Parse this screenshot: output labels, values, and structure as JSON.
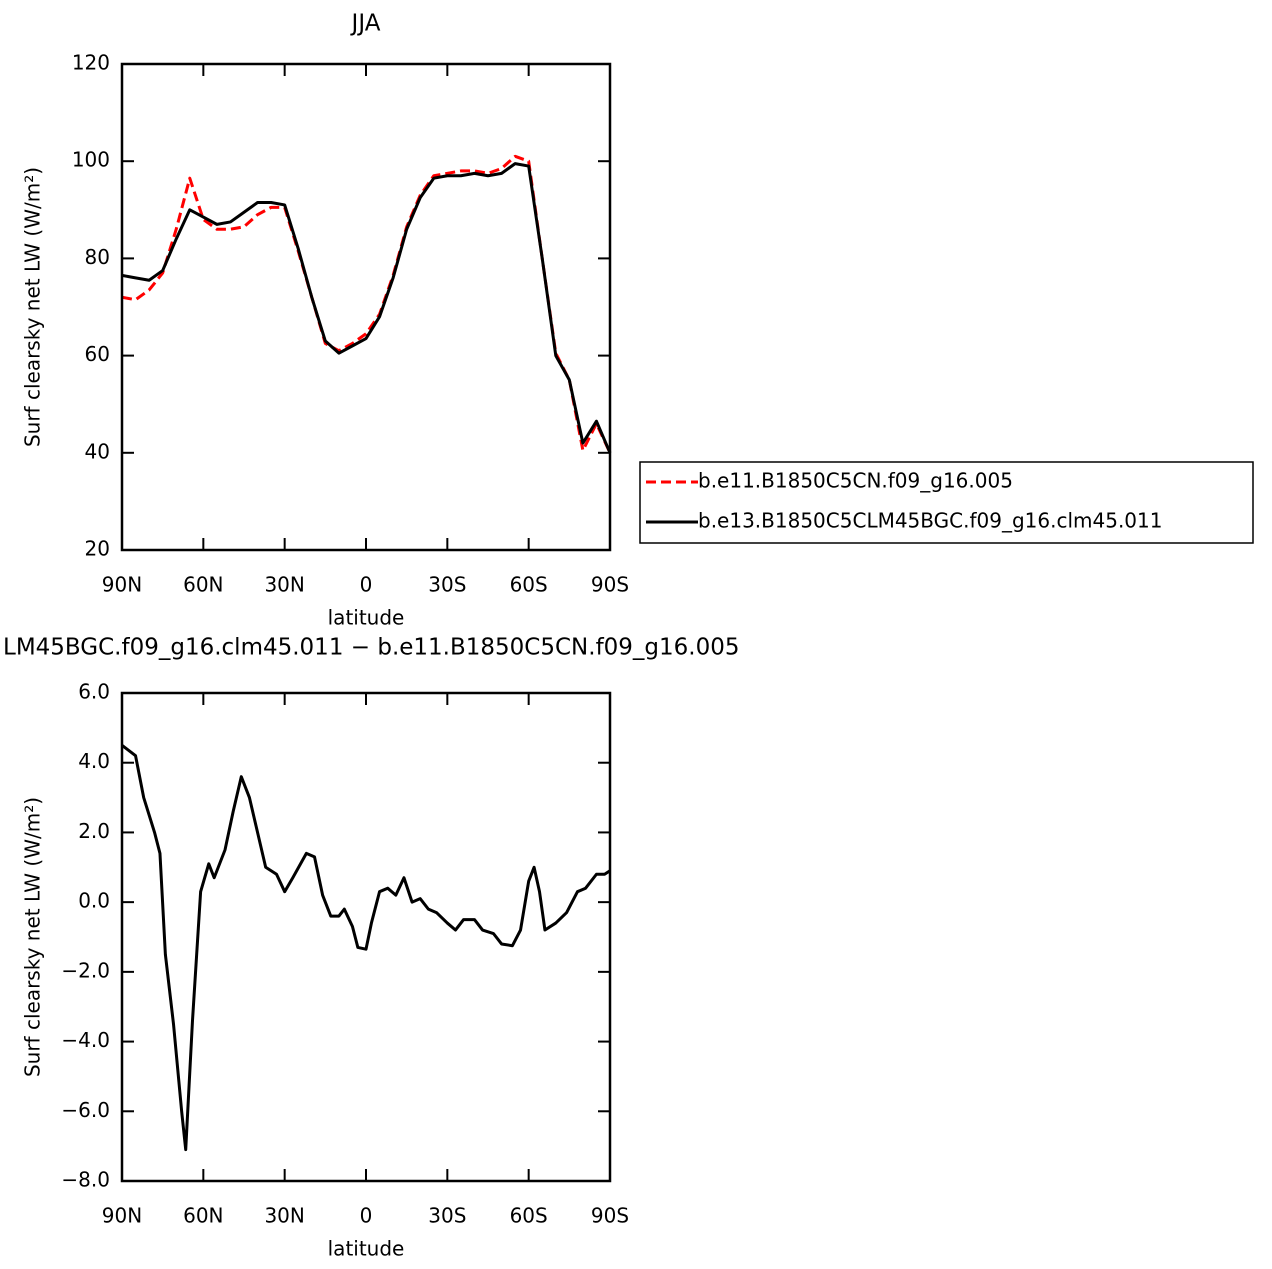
{
  "chart_data": [
    {
      "type": "line",
      "title": "JJA",
      "xlabel": "latitude",
      "ylabel": "Surf clearsky net LW (W/m²)",
      "xlim": [
        90,
        -90
      ],
      "ylim": [
        20,
        120
      ],
      "xticks": [
        {
          "value": 90,
          "label": "90N"
        },
        {
          "value": 60,
          "label": "60N"
        },
        {
          "value": 30,
          "label": "30N"
        },
        0,
        {
          "value": -30,
          "label": "30S"
        },
        {
          "value": -60,
          "label": "60S"
        },
        {
          "value": -90,
          "label": "90S"
        }
      ],
      "yticks": [
        20,
        40,
        60,
        80,
        100,
        120
      ],
      "legend": "right",
      "x": [
        90,
        85,
        80,
        75,
        70,
        65,
        60,
        55,
        50,
        45,
        40,
        35,
        30,
        25,
        20,
        15,
        10,
        5,
        0,
        -5,
        -10,
        -15,
        -20,
        -25,
        -30,
        -35,
        -40,
        -45,
        -50,
        -55,
        -60,
        -65,
        -70,
        -75,
        -80,
        -85,
        -90
      ],
      "series": [
        {
          "name": "b.e11.B1850C5CN.f09_g16.005",
          "color": "#ff0000",
          "dash": true,
          "values": [
            72,
            71.5,
            73.5,
            77,
            86,
            96.5,
            88,
            86,
            86,
            86.5,
            89,
            90.5,
            90.5,
            81.5,
            72,
            62.5,
            61,
            62.5,
            64.5,
            68.5,
            76.5,
            86.5,
            93,
            97,
            97.5,
            98,
            98,
            97.5,
            98.5,
            101,
            100,
            80,
            60.5,
            55,
            40.5,
            46,
            40
          ]
        },
        {
          "name": "b.e13.B1850C5CLM45BGC.f09_g16.clm45.011",
          "color": "#000000",
          "dash": false,
          "values": [
            76.5,
            76,
            75.5,
            77.5,
            84,
            90,
            88.5,
            87,
            87.5,
            89.5,
            91.5,
            91.5,
            91,
            82,
            72,
            63,
            60.5,
            62,
            63.5,
            68,
            76,
            86,
            92.5,
            96.5,
            97,
            97,
            97.5,
            97,
            97.5,
            99.5,
            99,
            80,
            60,
            55,
            42,
            46.5,
            40
          ]
        }
      ]
    },
    {
      "type": "line",
      "title": "LM45BGC.f09_g16.clm45.011 − b.e11.B1850C5CN.f09_g16.005",
      "xlabel": "latitude",
      "ylabel": "Surf clearsky net LW (W/m²)",
      "xlim": [
        90,
        -90
      ],
      "ylim": [
        -8,
        6
      ],
      "xticks": [
        {
          "value": 90,
          "label": "90N"
        },
        {
          "value": 60,
          "label": "60N"
        },
        {
          "value": 30,
          "label": "30N"
        },
        0,
        {
          "value": -30,
          "label": "30S"
        },
        {
          "value": -60,
          "label": "60S"
        },
        {
          "value": -90,
          "label": "90S"
        }
      ],
      "yticks": [
        {
          "value": -8,
          "label": "−8.0"
        },
        {
          "value": -6,
          "label": "−6.0"
        },
        {
          "value": -4,
          "label": "−4.0"
        },
        {
          "value": -2,
          "label": "−2.0"
        },
        {
          "value": 0,
          "label": "0.0"
        },
        {
          "value": 2,
          "label": "2.0"
        },
        {
          "value": 4,
          "label": "4.0"
        },
        {
          "value": 6,
          "label": "6.0"
        }
      ],
      "x": [
        90,
        85,
        82,
        78,
        76,
        74,
        71,
        68,
        66.5,
        64,
        61,
        58,
        56,
        52,
        49,
        46,
        43,
        40,
        37,
        33,
        30,
        27,
        22,
        19,
        16,
        13,
        10,
        8,
        5,
        3,
        0,
        -2,
        -5,
        -8,
        -11,
        -14,
        -17,
        -20,
        -23,
        -26,
        -30,
        -33,
        -36,
        -40,
        -43,
        -47,
        -50,
        -54,
        -57,
        -60,
        -62,
        -64,
        -66,
        -70,
        -74,
        -78,
        -81,
        -85,
        -88,
        -90
      ],
      "series": [
        {
          "color": "#000000",
          "dash": false,
          "values": [
            4.5,
            4.2,
            3.0,
            2.0,
            1.4,
            -1.5,
            -3.5,
            -6,
            -7.1,
            -3.4,
            0.3,
            1.1,
            0.7,
            1.5,
            2.6,
            3.6,
            3.0,
            2.0,
            1.0,
            0.8,
            0.3,
            0.7,
            1.4,
            1.3,
            0.2,
            -0.4,
            -0.4,
            -0.2,
            -0.7,
            -1.3,
            -1.35,
            -0.6,
            0.3,
            0.4,
            0.2,
            0.7,
            0.0,
            0.1,
            -0.2,
            -0.3,
            -0.6,
            -0.8,
            -0.5,
            -0.5,
            -0.8,
            -0.9,
            -1.2,
            -1.25,
            -0.8,
            0.6,
            1.0,
            0.3,
            -0.8,
            -0.6,
            -0.3,
            0.3,
            0.4,
            0.8,
            0.8,
            0.9
          ]
        }
      ]
    }
  ]
}
